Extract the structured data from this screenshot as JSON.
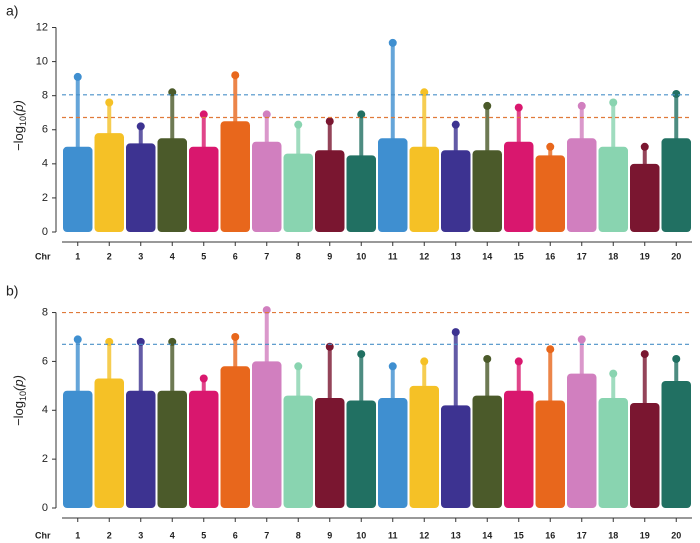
{
  "chart_data": [
    {
      "type": "manhattan",
      "panel_label": "a)",
      "x_label": "Chr",
      "y_label": {
        "prefix": "−log",
        "sub": "10",
        "suffix": "(p)"
      },
      "categories": [
        "1",
        "2",
        "3",
        "4",
        "5",
        "6",
        "7",
        "8",
        "9",
        "10",
        "11",
        "12",
        "13",
        "14",
        "15",
        "16",
        "17",
        "18",
        "19",
        "20"
      ],
      "colors": [
        "#3f8fd0",
        "#f5c126",
        "#3d3391",
        "#4b5a2a",
        "#d9176e",
        "#e8671c",
        "#d17fbf",
        "#89d4b0",
        "#7a1630",
        "#217062",
        "#3f8fd0",
        "#f5c126",
        "#3d3391",
        "#4b5a2a",
        "#d9176e",
        "#e8671c",
        "#d17fbf",
        "#89d4b0",
        "#7a1630",
        "#217062"
      ],
      "values": [
        9.1,
        7.6,
        6.2,
        8.2,
        6.9,
        9.2,
        6.9,
        6.3,
        6.5,
        6.9,
        11.1,
        8.2,
        6.3,
        7.4,
        7.3,
        5.0,
        7.4,
        7.6,
        5.0,
        8.1
      ],
      "bulk_values": [
        5.0,
        5.8,
        5.2,
        5.5,
        5.0,
        6.5,
        5.3,
        4.6,
        4.8,
        4.5,
        5.5,
        5.0,
        4.8,
        4.8,
        5.3,
        4.5,
        5.5,
        5.0,
        4.0,
        5.5
      ],
      "hlines": [
        {
          "value": 8.05,
          "color": "#4a90c8"
        },
        {
          "value": 6.72,
          "color": "#e07a3a"
        }
      ],
      "ylim": [
        0,
        12.5
      ],
      "yticks": [
        0,
        2,
        4,
        6,
        8,
        10,
        12
      ]
    },
    {
      "type": "manhattan",
      "panel_label": "b)",
      "x_label": "Chr",
      "y_label": {
        "prefix": "−log",
        "sub": "10",
        "suffix": "(p)"
      },
      "categories": [
        "1",
        "2",
        "3",
        "4",
        "5",
        "6",
        "7",
        "8",
        "9",
        "10",
        "11",
        "12",
        "13",
        "14",
        "15",
        "16",
        "17",
        "18",
        "19",
        "20"
      ],
      "colors": [
        "#3f8fd0",
        "#f5c126",
        "#3d3391",
        "#4b5a2a",
        "#d9176e",
        "#e8671c",
        "#d17fbf",
        "#89d4b0",
        "#7a1630",
        "#217062",
        "#3f8fd0",
        "#f5c126",
        "#3d3391",
        "#4b5a2a",
        "#d9176e",
        "#e8671c",
        "#d17fbf",
        "#89d4b0",
        "#7a1630",
        "#217062"
      ],
      "values": [
        6.9,
        6.8,
        6.8,
        6.8,
        5.3,
        7.0,
        8.1,
        5.8,
        6.6,
        6.3,
        5.8,
        6.0,
        7.2,
        6.1,
        6.0,
        6.5,
        6.9,
        5.5,
        6.3,
        6.1
      ],
      "bulk_values": [
        4.8,
        5.3,
        4.8,
        4.8,
        4.8,
        5.8,
        6.0,
        4.6,
        4.5,
        4.4,
        4.5,
        5.0,
        4.2,
        4.6,
        4.8,
        4.4,
        5.5,
        4.5,
        4.3,
        5.2
      ],
      "hlines": [
        {
          "value": 8.0,
          "color": "#e07a3a"
        },
        {
          "value": 6.7,
          "color": "#4a90c8"
        }
      ],
      "ylim": [
        0,
        8.8
      ],
      "yticks": [
        0,
        2,
        4,
        6,
        8
      ]
    }
  ]
}
